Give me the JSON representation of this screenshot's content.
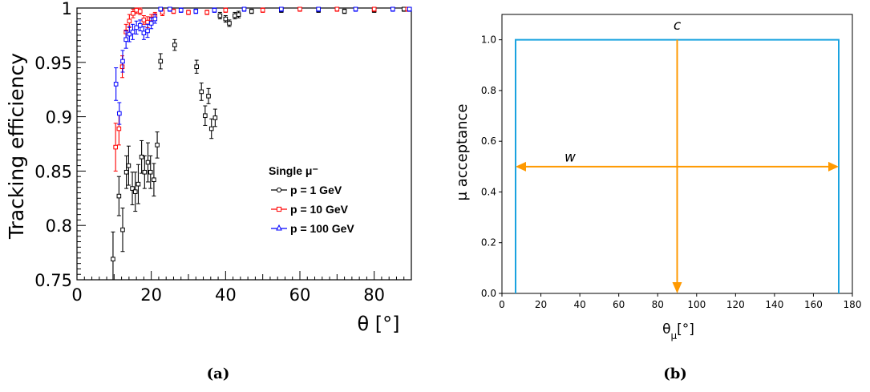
{
  "chart_data": [
    {
      "type": "scatter",
      "subcaption": "(a)",
      "xlabel": "θ [°]",
      "ylabel": "Tracking efficiency",
      "xlim": [
        0,
        90
      ],
      "ylim": [
        0.75,
        1.0
      ],
      "xticks": [
        0,
        20,
        40,
        60,
        80
      ],
      "yticks": [
        0.75,
        0.8,
        0.85,
        0.9,
        0.95,
        1
      ],
      "ytick_labels": [
        "0.75",
        "0.8",
        "0.85",
        "0.9",
        "0.95",
        "1"
      ],
      "legend_title": "Single μ⁻",
      "legend_position": "center-right",
      "series": [
        {
          "name": "p = 1 GeV",
          "color": "#000000",
          "marker": "circle",
          "points": [
            [
              9.7,
              0.769,
              0.025
            ],
            [
              11.3,
              0.827,
              0.018
            ],
            [
              12.3,
              0.796,
              0.02
            ],
            [
              13.3,
              0.849,
              0.015
            ],
            [
              13.9,
              0.855,
              0.018
            ],
            [
              14.9,
              0.834,
              0.015
            ],
            [
              15.7,
              0.831,
              0.018
            ],
            [
              16.5,
              0.838,
              0.018
            ],
            [
              17.4,
              0.863,
              0.015
            ],
            [
              18.2,
              0.849,
              0.015
            ],
            [
              19.1,
              0.858,
              0.018
            ],
            [
              19.8,
              0.849,
              0.015
            ],
            [
              20.7,
              0.842,
              0.015
            ],
            [
              21.6,
              0.874,
              0.012
            ],
            [
              22.5,
              0.951,
              0.007
            ],
            [
              26.3,
              0.966,
              0.005
            ],
            [
              32.2,
              0.946,
              0.006
            ],
            [
              33.5,
              0.923,
              0.008
            ],
            [
              34.5,
              0.901,
              0.009
            ],
            [
              35.4,
              0.919,
              0.007
            ],
            [
              36.2,
              0.889,
              0.009
            ],
            [
              37.2,
              0.899,
              0.008
            ],
            [
              38.5,
              0.993,
              0.003
            ],
            [
              40.0,
              0.99,
              0.003
            ],
            [
              41.0,
              0.986,
              0.003
            ],
            [
              42.5,
              0.993,
              0.003
            ],
            [
              43.5,
              0.994,
              0.003
            ],
            [
              47.0,
              0.997,
              0.002
            ],
            [
              55.0,
              0.998,
              0.002
            ],
            [
              65.0,
              0.998,
              0.002
            ],
            [
              72.0,
              0.997,
              0.002
            ],
            [
              80.0,
              0.998,
              0.002
            ],
            [
              88.0,
              0.999,
              0.002
            ]
          ]
        },
        {
          "name": "p = 10 GeV",
          "color": "#ff0000",
          "marker": "square",
          "points": [
            [
              10.4,
              0.872,
              0.022
            ],
            [
              11.3,
              0.889,
              0.015
            ],
            [
              12.2,
              0.946,
              0.01
            ],
            [
              13.2,
              0.978,
              0.007
            ],
            [
              14.1,
              0.988,
              0.006
            ],
            [
              15.1,
              0.995,
              0.004
            ],
            [
              16.0,
              0.998,
              0.003
            ],
            [
              17.0,
              0.997,
              0.003
            ],
            [
              18.0,
              0.989,
              0.004
            ],
            [
              19.0,
              0.987,
              0.005
            ],
            [
              20.0,
              0.99,
              0.004
            ],
            [
              21.0,
              0.993,
              0.003
            ],
            [
              23.0,
              0.996,
              0.003
            ],
            [
              26.0,
              0.997,
              0.002
            ],
            [
              30.0,
              0.996,
              0.002
            ],
            [
              35.0,
              0.996,
              0.002
            ],
            [
              40.0,
              0.998,
              0.002
            ],
            [
              50.0,
              0.998,
              0.002
            ],
            [
              60.0,
              0.999,
              0.002
            ],
            [
              70.0,
              0.999,
              0.002
            ],
            [
              80.0,
              0.999,
              0.002
            ],
            [
              89.0,
              0.999,
              0.002
            ]
          ]
        },
        {
          "name": "p = 100 GeV",
          "color": "#0000ff",
          "marker": "triangle",
          "points": [
            [
              10.5,
              0.93,
              0.015
            ],
            [
              11.4,
              0.903,
              0.01
            ],
            [
              12.3,
              0.951,
              0.01
            ],
            [
              13.2,
              0.971,
              0.008
            ],
            [
              14.1,
              0.976,
              0.007
            ],
            [
              15.0,
              0.978,
              0.007
            ],
            [
              16.0,
              0.982,
              0.006
            ],
            [
              17.0,
              0.984,
              0.005
            ],
            [
              18.0,
              0.977,
              0.006
            ],
            [
              19.0,
              0.979,
              0.006
            ],
            [
              20.0,
              0.986,
              0.005
            ],
            [
              21.0,
              0.99,
              0.004
            ],
            [
              22.5,
              0.999,
              0.002
            ],
            [
              25.0,
              0.999,
              0.002
            ],
            [
              28.0,
              0.998,
              0.002
            ],
            [
              32.0,
              0.997,
              0.002
            ],
            [
              37.0,
              0.998,
              0.002
            ],
            [
              45.0,
              0.999,
              0.002
            ],
            [
              55.0,
              0.999,
              0.002
            ],
            [
              65.0,
              0.999,
              0.002
            ],
            [
              75.0,
              0.999,
              0.002
            ],
            [
              85.0,
              0.999,
              0.002
            ],
            [
              89.5,
              0.999,
              0.002
            ]
          ]
        }
      ]
    },
    {
      "type": "line",
      "subcaption": "(b)",
      "xlabel": "θμ[°]",
      "ylabel": "μ acceptance",
      "xlim": [
        0,
        180
      ],
      "ylim": [
        0,
        1.1
      ],
      "xticks": [
        0,
        20,
        40,
        60,
        80,
        100,
        120,
        140,
        160,
        180
      ],
      "yticks": [
        0.0,
        0.2,
        0.4,
        0.6,
        0.8,
        1.0
      ],
      "ytick_labels": [
        "0.0",
        "0.2",
        "0.4",
        "0.6",
        "0.8",
        "1.0"
      ],
      "series": [
        {
          "color": "#1aa3e0",
          "x": [
            7,
            7,
            173,
            173
          ],
          "y": [
            0,
            1.0,
            1.0,
            0
          ]
        }
      ],
      "annotations": [
        {
          "label": "c",
          "type": "vertical-arrow",
          "x": 90,
          "y_from": 1.0,
          "y_to": 0.0,
          "label_at": [
            90,
            1.04
          ],
          "color": "#ff9900"
        },
        {
          "label": "w",
          "type": "double-arrow",
          "y": 0.5,
          "x_from": 7,
          "x_to": 173,
          "label_at": [
            35,
            0.52
          ],
          "color": "#ff9900"
        }
      ]
    }
  ]
}
